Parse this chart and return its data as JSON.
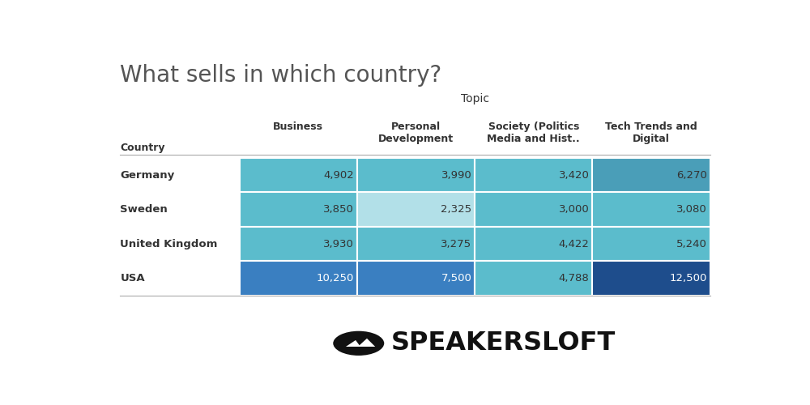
{
  "title": "What sells in which country?",
  "topic_label": "Topic",
  "col_header_country": "Country",
  "col_headers": [
    "Business",
    "Personal\nDevelopment",
    "Society (Politics\nMedia and Hist..",
    "Tech Trends and\nDigital"
  ],
  "row_labels": [
    "Germany",
    "Sweden",
    "United Kingdom",
    "USA"
  ],
  "formatted_values": [
    [
      "4,902",
      "3,990",
      "3,420",
      "6,270"
    ],
    [
      "3,850",
      "2,325",
      "3,000",
      "3,080"
    ],
    [
      "3,930",
      "3,275",
      "4,422",
      "5,240"
    ],
    [
      "10,250",
      "7,500",
      "4,788",
      "12,500"
    ]
  ],
  "bg_color": "#ffffff",
  "title_color": "#555555",
  "header_color": "#333333",
  "cell_colors": [
    [
      "#5bbccc",
      "#5bbccc",
      "#5bbccc",
      "#4a9eb8"
    ],
    [
      "#5bbccc",
      "#b2e0e8",
      "#5bbccc",
      "#5bbccc"
    ],
    [
      "#5bbccc",
      "#5bbccc",
      "#5bbccc",
      "#5bbccc"
    ],
    [
      "#3a7fc1",
      "#3a7fc1",
      "#5bbccc",
      "#1e4d8c"
    ]
  ],
  "text_colors": [
    [
      "#333333",
      "#333333",
      "#333333",
      "#333333"
    ],
    [
      "#333333",
      "#333333",
      "#333333",
      "#333333"
    ],
    [
      "#333333",
      "#333333",
      "#333333",
      "#333333"
    ],
    [
      "#ffffff",
      "#ffffff",
      "#333333",
      "#ffffff"
    ]
  ],
  "logo_text": "SPEAKERSLOFT",
  "logo_bg": "#111111"
}
